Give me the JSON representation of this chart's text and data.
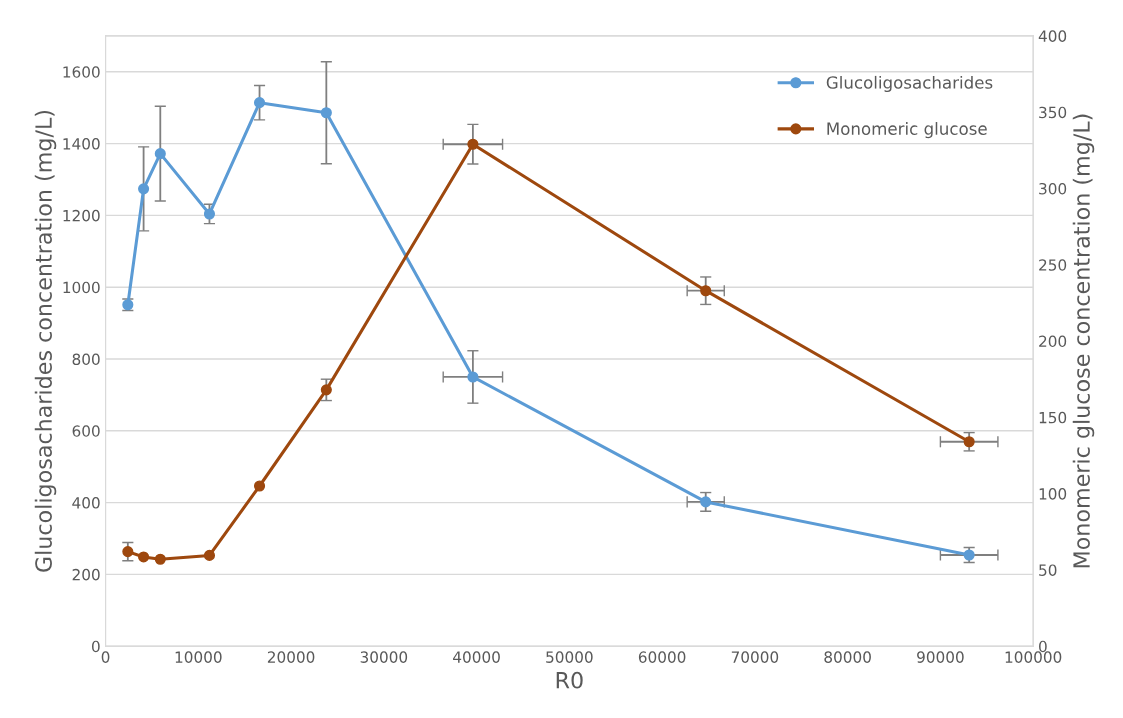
{
  "chart_data": {
    "type": "line",
    "xlabel": "R0",
    "ylabel": "Glucoligosacharides concentration (mg/L)",
    "y2label": "Monomeric glucose concentration (mg/L)",
    "xlim": [
      0,
      100000
    ],
    "xticks": [
      0,
      10000,
      20000,
      30000,
      40000,
      50000,
      60000,
      70000,
      80000,
      90000,
      100000
    ],
    "ylim": [
      0,
      1700
    ],
    "yticks": [
      0,
      200,
      400,
      600,
      800,
      1000,
      1200,
      1400,
      1600
    ],
    "y2lim": [
      0,
      400
    ],
    "y2ticks": [
      0,
      50,
      100,
      150,
      200,
      250,
      300,
      350,
      400
    ],
    "grid": "y",
    "legend": "top right",
    "marker": "circle",
    "line_style": "solid",
    "series": [
      {
        "name": "Glucoligosacharides",
        "color": "#5b9bd5",
        "x": [
          2400,
          4100,
          5900,
          11200,
          16600,
          23800,
          39600,
          64700,
          93100
        ],
        "values": [
          951,
          1274,
          1372,
          1204,
          1514,
          1486,
          750,
          402,
          254
        ],
        "errors": [
          16,
          117,
          132,
          27,
          48,
          142,
          73,
          26,
          21
        ],
        "xerrors": [
          null,
          null,
          null,
          null,
          null,
          null,
          3200,
          2000,
          3100
        ]
      },
      {
        "name": "Monomeric glucose",
        "color": "#9e480e",
        "axis": "y2",
        "x": [
          2400,
          4100,
          5900,
          11200,
          16600,
          23800,
          39600,
          64700,
          93100
        ],
        "values": [
          62,
          58.5,
          57,
          59.5,
          105,
          168,
          329,
          233,
          134
        ],
        "errors": [
          6,
          null,
          null,
          null,
          null,
          7,
          13,
          9,
          6
        ],
        "xerrors": [
          null,
          null,
          null,
          null,
          null,
          null,
          3200,
          2000,
          3100
        ]
      }
    ]
  }
}
